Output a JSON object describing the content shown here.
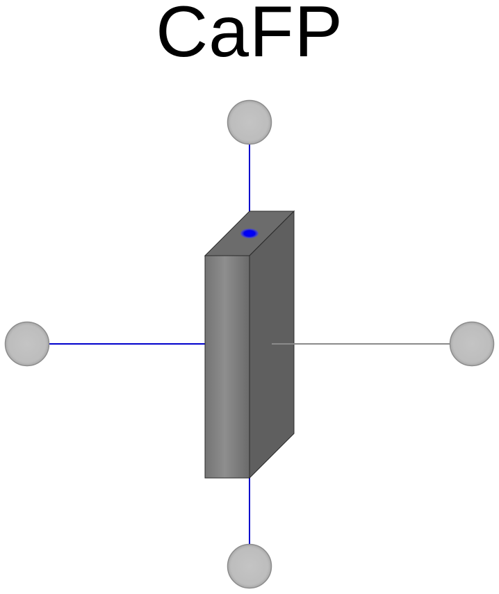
{
  "title": "CaFP",
  "colors": {
    "connector_line": "#0000cc",
    "internal_line": "#808080",
    "port_fill": "#c0c0c0",
    "port_stroke": "#8c8c8c",
    "block_front": "#828282",
    "block_side": "#606060",
    "block_top": "#6e6e6e",
    "dot": "#0000ff"
  }
}
